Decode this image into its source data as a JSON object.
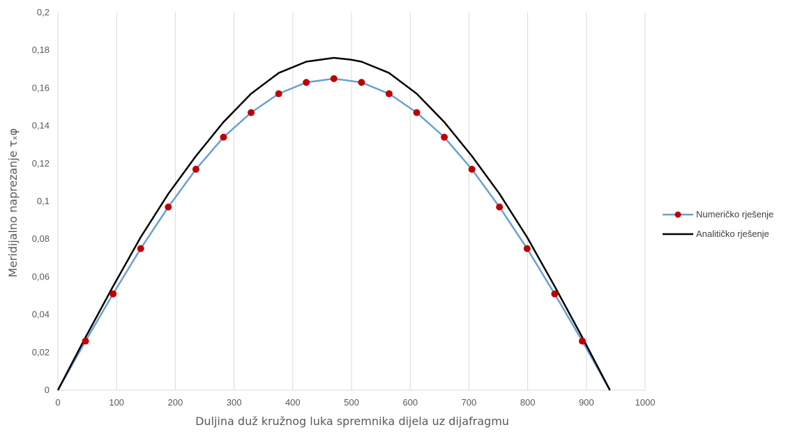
{
  "chart_data": {
    "type": "line",
    "title": "",
    "xlabel": "Duljina duž kružnog luka spremnika dijela uz dijafragmu",
    "ylabel": "Meridijalno naprezanje τₓφ",
    "xlim": [
      0,
      1000
    ],
    "ylim": [
      0,
      0.2
    ],
    "x_ticks": [
      "0",
      "100",
      "200",
      "300",
      "400",
      "500",
      "600",
      "700",
      "800",
      "900",
      "1000"
    ],
    "y_ticks": [
      "0",
      "0,02",
      "0,04",
      "0,06",
      "0,08",
      "0,1",
      "0,12",
      "0,14",
      "0,16",
      "0,18",
      "0,2"
    ],
    "grid": "vertical",
    "legend_position": "right",
    "series": [
      {
        "name": "Numeričko rješenje",
        "color": "#6a9fd1",
        "marker_color": "#c00000",
        "marker": "circle",
        "x": [
          0,
          47,
          94,
          141,
          188,
          235,
          282,
          329,
          376,
          423,
          470,
          517,
          564,
          611,
          658,
          705,
          752,
          799,
          846,
          893,
          940
        ],
        "y": [
          0,
          0.026,
          0.051,
          0.075,
          0.097,
          0.117,
          0.134,
          0.147,
          0.157,
          0.163,
          0.165,
          0.163,
          0.157,
          0.147,
          0.134,
          0.117,
          0.097,
          0.075,
          0.051,
          0.026,
          0
        ]
      },
      {
        "name": "Analitičko rješenje",
        "color": "#000000",
        "marker": "none",
        "x": [
          0,
          47,
          94,
          141,
          188,
          235,
          282,
          329,
          376,
          423,
          470,
          500,
          517,
          564,
          611,
          658,
          705,
          752,
          799,
          846,
          893,
          940
        ],
        "y": [
          0,
          0.028,
          0.055,
          0.081,
          0.104,
          0.124,
          0.142,
          0.157,
          0.168,
          0.174,
          0.176,
          0.175,
          0.174,
          0.168,
          0.157,
          0.142,
          0.124,
          0.104,
          0.081,
          0.055,
          0.028,
          0
        ]
      }
    ]
  }
}
